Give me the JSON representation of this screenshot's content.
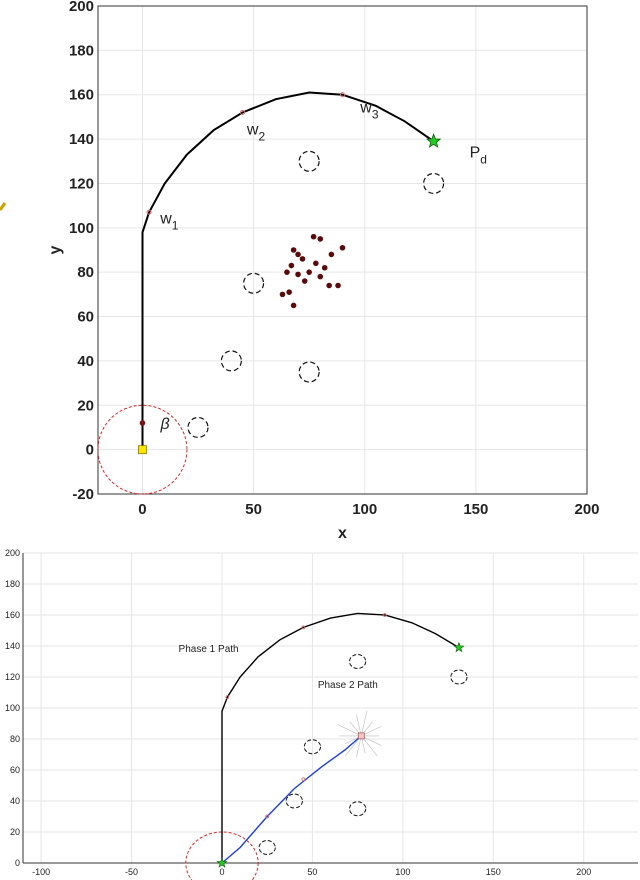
{
  "chart_data": [
    {
      "type": "line",
      "title": "",
      "xlabel": "x",
      "ylabel": "y",
      "xlim": [
        -20,
        200
      ],
      "ylim": [
        -20,
        200
      ],
      "x_ticks": [
        0,
        50,
        100,
        150,
        200
      ],
      "y_ticks": [
        -20,
        0,
        20,
        40,
        60,
        80,
        100,
        120,
        140,
        160,
        180,
        200
      ],
      "grid": true,
      "path": [
        [
          0,
          0
        ],
        [
          0,
          98
        ],
        [
          3,
          107
        ],
        [
          10,
          120
        ],
        [
          20,
          133
        ],
        [
          32,
          144
        ],
        [
          45,
          152
        ],
        [
          60,
          158
        ],
        [
          75,
          161
        ],
        [
          90,
          160
        ],
        [
          105,
          155
        ],
        [
          118,
          148
        ],
        [
          131,
          139
        ]
      ],
      "start": [
        0,
        0
      ],
      "goal": [
        131,
        139
      ],
      "goal_label": "P",
      "goal_label_sub": "d",
      "beta_marker": [
        0,
        12
      ],
      "beta_label": "β",
      "sensing_circle": {
        "center": [
          0,
          0
        ],
        "radius": 20
      },
      "waypoints": [
        {
          "label": "w",
          "sub": "1",
          "x": 3,
          "y": 107,
          "label_x": 8,
          "label_y": 102
        },
        {
          "label": "w",
          "sub": "2",
          "x": 45,
          "y": 152,
          "label_x": 47,
          "label_y": 142
        },
        {
          "label": "w",
          "sub": "3",
          "x": 90,
          "y": 160,
          "label_x": 98,
          "label_y": 152
        }
      ],
      "obstacles": [
        {
          "x": 75,
          "y": 130,
          "r": 4.5
        },
        {
          "x": 131,
          "y": 120,
          "r": 4.5
        },
        {
          "x": 50,
          "y": 75,
          "r": 4.5
        },
        {
          "x": 40,
          "y": 40,
          "r": 4.5
        },
        {
          "x": 75,
          "y": 35,
          "r": 4.5
        },
        {
          "x": 25,
          "y": 10,
          "r": 4.5
        }
      ],
      "swarm": [
        [
          77,
          96
        ],
        [
          80,
          95
        ],
        [
          90,
          91
        ],
        [
          68,
          90
        ],
        [
          70,
          88
        ],
        [
          85,
          88
        ],
        [
          72,
          86
        ],
        [
          78,
          84
        ],
        [
          67,
          83
        ],
        [
          82,
          82
        ],
        [
          65,
          80
        ],
        [
          70,
          79
        ],
        [
          75,
          80
        ],
        [
          80,
          78
        ],
        [
          73,
          76
        ],
        [
          84,
          74
        ],
        [
          88,
          74
        ],
        [
          66,
          71
        ],
        [
          63,
          70
        ],
        [
          68,
          65
        ]
      ],
      "colors": {
        "path": "#000000",
        "circle": "#d62728",
        "goal": "#22cc22",
        "start": "#ffe600",
        "swarm": "#5a0a0a",
        "waypoint": "#e06666"
      }
    },
    {
      "type": "line",
      "title": "",
      "xlabel": "",
      "ylabel": "",
      "xlim": [
        -110,
        230
      ],
      "ylim": [
        0,
        200
      ],
      "x_ticks": [
        -100,
        -50,
        0,
        50,
        100,
        150,
        200
      ],
      "y_ticks": [
        0,
        20,
        40,
        60,
        80,
        100,
        120,
        140,
        160,
        180,
        200
      ],
      "grid": true,
      "series": [
        {
          "name": "Phase 1 Path",
          "color": "#000000",
          "points": [
            [
              0,
              0
            ],
            [
              0,
              98
            ],
            [
              3,
              107
            ],
            [
              10,
              120
            ],
            [
              20,
              133
            ],
            [
              32,
              144
            ],
            [
              45,
              152
            ],
            [
              60,
              158
            ],
            [
              75,
              161
            ],
            [
              90,
              160
            ],
            [
              105,
              155
            ],
            [
              118,
              148
            ],
            [
              131,
              139
            ]
          ],
          "label_x": -24,
          "label_y": 136
        },
        {
          "name": "Phase 2 Path",
          "color": "#1f3fd6",
          "points": [
            [
              0,
              0
            ],
            [
              10,
              10
            ],
            [
              25,
              30
            ],
            [
              40,
              48
            ],
            [
              55,
              62
            ],
            [
              68,
              73
            ],
            [
              77,
              82
            ]
          ],
          "label_x": 53,
          "label_y": 113
        }
      ],
      "start": [
        0,
        0
      ],
      "goal": [
        131,
        139
      ],
      "sensing_circle": {
        "center": [
          0,
          0
        ],
        "radius": 20
      },
      "obstacles": [
        {
          "x": 75,
          "y": 130,
          "r": 4.5
        },
        {
          "x": 131,
          "y": 120,
          "r": 4.5
        },
        {
          "x": 50,
          "y": 75,
          "r": 4.5
        },
        {
          "x": 40,
          "y": 40,
          "r": 4.5
        },
        {
          "x": 75,
          "y": 35,
          "r": 4.5
        },
        {
          "x": 25,
          "y": 10,
          "r": 4.5
        }
      ],
      "waypoints": [
        [
          3,
          107
        ],
        [
          45,
          152
        ],
        [
          90,
          160
        ]
      ],
      "phase2_markers": [
        [
          25,
          30
        ],
        [
          45,
          54
        ]
      ],
      "spray_center": [
        77,
        82
      ],
      "colors": {
        "circle": "#d62728",
        "goal": "#22cc22",
        "waypoint": "#e06666",
        "spray": "#bbbbbb"
      }
    }
  ]
}
